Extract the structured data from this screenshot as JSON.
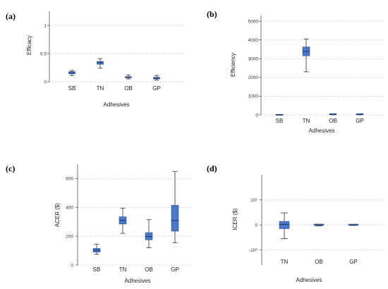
{
  "chart_data": [
    {
      "type": "box",
      "panel_label": "(a)",
      "ylabel": "Efficacy",
      "xlabel": "Adhesives",
      "categories": [
        "SB",
        "TN",
        "OB",
        "GP"
      ],
      "ylim": [
        0,
        1.25
      ],
      "yticks": [
        0,
        0.5,
        1
      ],
      "ytick_labels": [
        "0",
        "0.5",
        "1"
      ],
      "grid": true,
      "boxes": [
        {
          "min": 0.11,
          "q1": 0.14,
          "median": 0.16,
          "q3": 0.18,
          "max": 0.2
        },
        {
          "min": 0.24,
          "q1": 0.31,
          "median": 0.34,
          "q3": 0.36,
          "max": 0.41
        },
        {
          "min": 0.05,
          "q1": 0.07,
          "median": 0.08,
          "q3": 0.09,
          "max": 0.12
        },
        {
          "min": 0.03,
          "q1": 0.05,
          "median": 0.06,
          "q3": 0.08,
          "max": 0.11
        }
      ]
    },
    {
      "type": "box",
      "panel_label": "(b)",
      "ylabel": "Efficiency",
      "xlabel": "Adhesives",
      "categories": [
        "SB",
        "TN",
        "OB",
        "GP"
      ],
      "ylim": [
        0,
        5300
      ],
      "yticks": [
        0,
        1000,
        2000,
        3000,
        4000,
        5000
      ],
      "ytick_labels": [
        "0",
        "1000",
        "2000",
        "3000",
        "4000",
        "5000"
      ],
      "grid": true,
      "boxes": [
        {
          "min": 0,
          "q1": 0,
          "median": 0,
          "q3": 5,
          "max": 10
        },
        {
          "min": 2300,
          "q1": 3150,
          "median": 3380,
          "q3": 3620,
          "max": 4050
        },
        {
          "min": 5,
          "q1": 15,
          "median": 25,
          "q3": 40,
          "max": 60
        },
        {
          "min": 5,
          "q1": 15,
          "median": 25,
          "q3": 40,
          "max": 60
        }
      ]
    },
    {
      "type": "box",
      "panel_label": "(c)",
      "ylabel": "ACER ($)",
      "xlabel": "Adhesives",
      "categories": [
        "SB",
        "TN",
        "OB",
        "GP"
      ],
      "ylim": [
        0,
        700
      ],
      "yticks": [
        0,
        200,
        400,
        600
      ],
      "ytick_labels": [
        "0",
        "200",
        "400",
        "600"
      ],
      "grid": true,
      "boxes": [
        {
          "min": 75,
          "q1": 90,
          "median": 103,
          "q3": 115,
          "max": 145
        },
        {
          "min": 220,
          "q1": 285,
          "median": 310,
          "q3": 335,
          "max": 395
        },
        {
          "min": 120,
          "q1": 175,
          "median": 198,
          "q3": 225,
          "max": 315
        },
        {
          "min": 155,
          "q1": 235,
          "median": 310,
          "q3": 415,
          "max": 650
        }
      ]
    },
    {
      "type": "box",
      "panel_label": "(d)",
      "ylabel": "ICER ($)",
      "xlabel": "Adhesives",
      "categories": [
        "TN",
        "OB",
        "GP"
      ],
      "ylim": [
        -1.6,
        2.0
      ],
      "yticks": [
        -1,
        0,
        1
      ],
      "ytick_labels": [
        "-10⁶",
        "0",
        "10⁶"
      ],
      "grid": true,
      "boxes": [
        {
          "min": -0.55,
          "q1": -0.15,
          "median": 0.02,
          "q3": 0.14,
          "max": 0.48
        },
        {
          "min": -0.04,
          "q1": -0.02,
          "median": 0,
          "q3": 0.01,
          "max": 0.03
        },
        {
          "min": -0.02,
          "q1": -0.01,
          "median": 0,
          "q3": 0.01,
          "max": 0.02
        }
      ]
    }
  ],
  "colors": {
    "box": "#4a78c9",
    "box_border": "#2d4f8e",
    "median": "#1f3566",
    "grid": "#c8c8c8"
  }
}
